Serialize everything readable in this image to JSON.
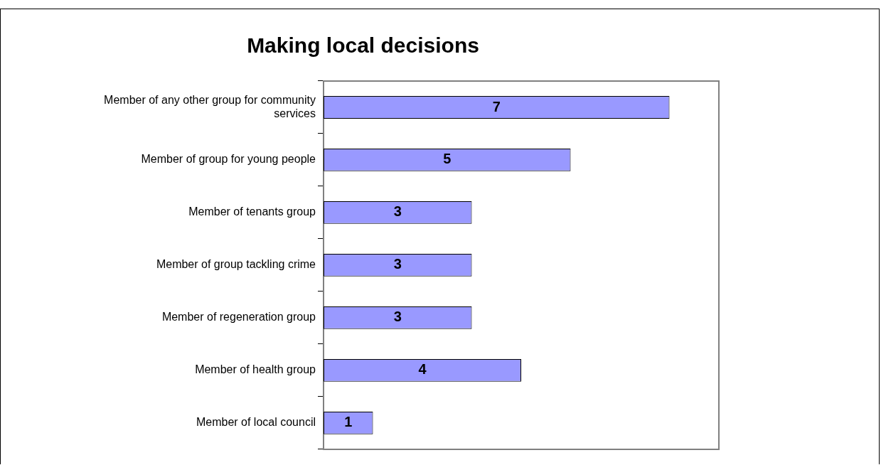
{
  "chart_data": {
    "type": "bar",
    "orientation": "horizontal",
    "title": "Making local decisions",
    "categories": [
      "Member of any other group for community services",
      "Member of group for young people",
      "Member of tenants group",
      "Member of group tackling crime",
      "Member of regeneration group",
      "Member of health group",
      "Member of local council"
    ],
    "values": [
      7,
      5,
      3,
      3,
      3,
      4,
      1
    ],
    "color": "#9999ff",
    "xlim": [
      0,
      8
    ],
    "tick_labels": "y",
    "data_labels": true,
    "grid": false,
    "legend": false
  }
}
